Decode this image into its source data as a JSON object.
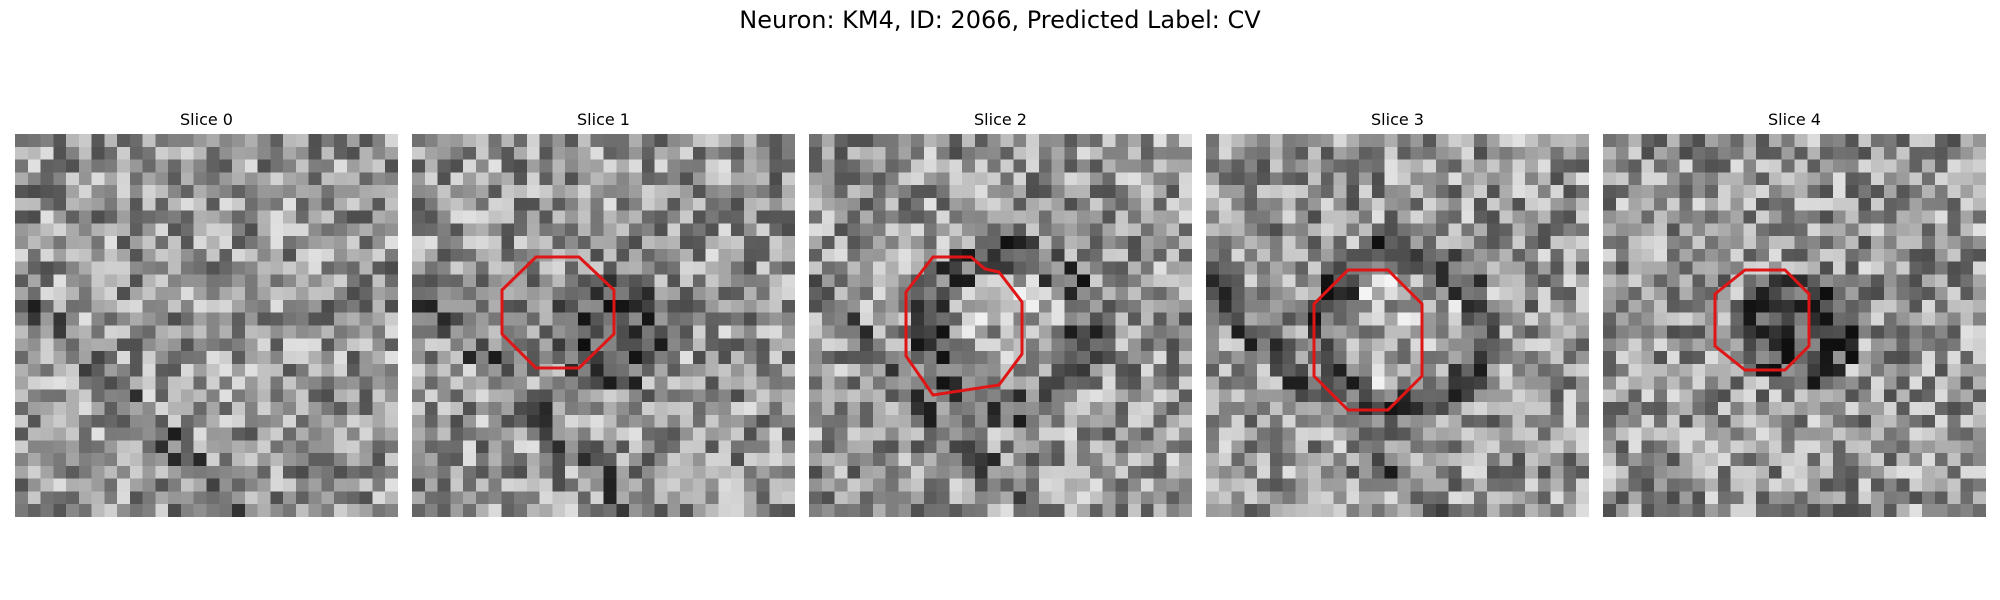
{
  "figure": {
    "title": "Neuron: KM4, ID: 2066, Predicted Label: CV"
  },
  "outline_color": "#e01515",
  "panels": [
    {
      "title": "Slice 0",
      "has_outline": false,
      "center_tone": "noise",
      "seed": 11
    },
    {
      "title": "Slice 1",
      "has_outline": true,
      "center_tone": "dark",
      "seed": 23
    },
    {
      "title": "Slice 2",
      "has_outline": true,
      "center_tone": "light-ring",
      "seed": 37
    },
    {
      "title": "Slice 3",
      "has_outline": true,
      "center_tone": "light-ring",
      "seed": 51
    },
    {
      "title": "Slice 4",
      "has_outline": true,
      "center_tone": "dark",
      "seed": 67
    }
  ]
}
